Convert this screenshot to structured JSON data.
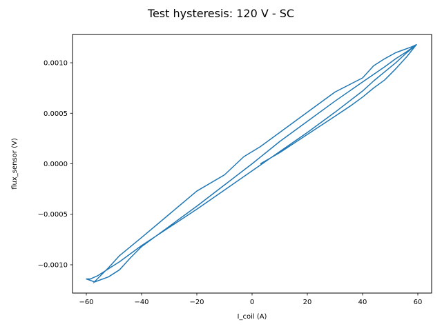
{
  "chart_data": {
    "type": "line",
    "title": "Test hysteresis: 120 V - SC",
    "xlabel": "I_coil (A)",
    "ylabel": "flux_sensor (V)",
    "xlim": [
      -65,
      65
    ],
    "ylim": [
      -0.00128,
      0.00128
    ],
    "grid": false,
    "x_ticks": [
      {
        "value": -60,
        "label": "−60"
      },
      {
        "value": -40,
        "label": "−40"
      },
      {
        "value": -20,
        "label": "−20"
      },
      {
        "value": 0,
        "label": "0"
      },
      {
        "value": 20,
        "label": "20"
      },
      {
        "value": 40,
        "label": "40"
      },
      {
        "value": 60,
        "label": "60"
      }
    ],
    "y_ticks": [
      {
        "value": -0.001,
        "label": "−0.0010"
      },
      {
        "value": -0.0005,
        "label": "−0.0005"
      },
      {
        "value": 0.0,
        "label": "0.0000"
      },
      {
        "value": 0.0005,
        "label": "0.0005"
      },
      {
        "value": 0.001,
        "label": "0.0010"
      }
    ],
    "series": [
      {
        "color": "#1f77b4",
        "x": [
          3,
          10,
          20,
          30,
          36,
          40,
          44,
          48,
          52,
          56,
          59.5,
          56,
          52,
          48,
          44,
          40,
          30,
          20,
          10,
          0,
          -10,
          -20,
          -30,
          -40,
          -48,
          -52,
          -56,
          -58.5,
          -60,
          -57,
          -52,
          -48,
          -44,
          -40,
          -30,
          -20,
          -10,
          0,
          10,
          20,
          30,
          40,
          48,
          52,
          56,
          59.5,
          58,
          52,
          48,
          44,
          40,
          30,
          20,
          10,
          3,
          -3,
          -10,
          -20,
          -30,
          -40,
          -48,
          -52,
          -57.5
        ],
        "y": [
          0.0,
          0.00011,
          0.00029,
          0.00047,
          0.00058,
          0.00066,
          0.00075,
          0.00083,
          0.00094,
          0.00106,
          0.00118,
          0.0011,
          0.001,
          0.00091,
          0.00082,
          0.00072,
          0.00051,
          0.00031,
          0.00012,
          -7e-05,
          -0.00026,
          -0.00045,
          -0.00063,
          -0.00081,
          -0.00097,
          -0.00104,
          -0.00111,
          -0.00114,
          -0.00114,
          -0.00117,
          -0.00112,
          -0.00105,
          -0.00093,
          -0.00082,
          -0.00062,
          -0.00042,
          -0.00021,
          0.0,
          0.00022,
          0.00042,
          0.00062,
          0.00081,
          0.00096,
          0.00104,
          0.00111,
          0.00118,
          0.00116,
          0.0011,
          0.00104,
          0.00097,
          0.00085,
          0.00071,
          0.00051,
          0.00031,
          0.00017,
          7e-05,
          -0.00011,
          -0.00027,
          -0.0005,
          -0.00073,
          -0.00091,
          -0.00103,
          -0.00118
        ]
      }
    ]
  }
}
